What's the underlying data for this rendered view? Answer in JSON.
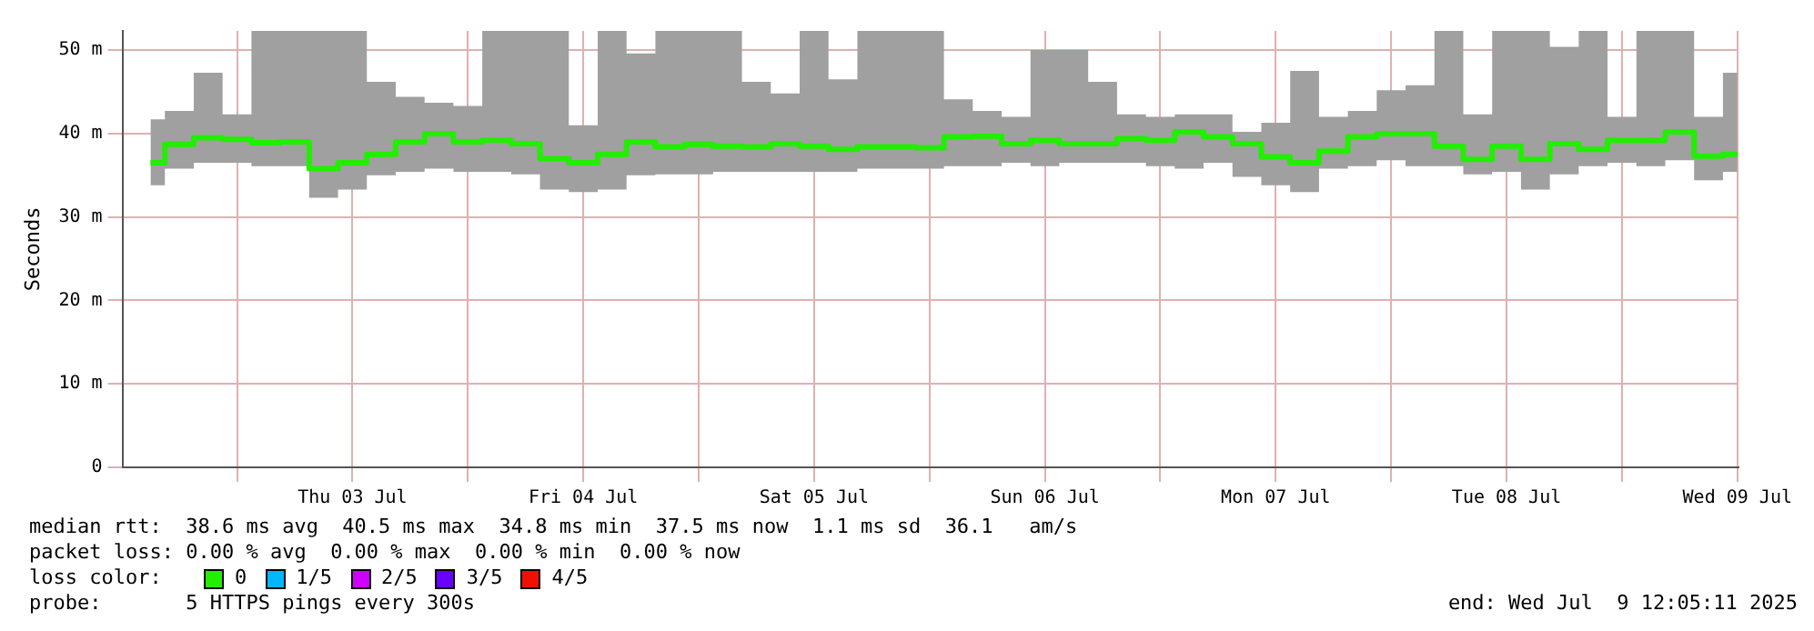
{
  "chart_data": {
    "type": "step",
    "ylabel": "Seconds",
    "legend_title": "loss color:",
    "legend": "bottom",
    "grid": true,
    "xlim": [
      "2025-07-02T12:05",
      "2025-07-09T12:05"
    ],
    "xticks": [
      {
        "value": "2025-07-03T00:00",
        "label": null
      },
      {
        "value": "2025-07-03T12:00",
        "label": "Thu 03 Jul"
      },
      {
        "value": "2025-07-04T00:00",
        "label": null
      },
      {
        "value": "2025-07-04T12:00",
        "label": "Fri 04 Jul"
      },
      {
        "value": "2025-07-05T00:00",
        "label": null
      },
      {
        "value": "2025-07-05T12:00",
        "label": "Sat 05 Jul"
      },
      {
        "value": "2025-07-06T00:00",
        "label": null
      },
      {
        "value": "2025-07-06T12:00",
        "label": "Sun 06 Jul"
      },
      {
        "value": "2025-07-07T00:00",
        "label": null
      },
      {
        "value": "2025-07-07T12:00",
        "label": "Mon 07 Jul"
      },
      {
        "value": "2025-07-08T00:00",
        "label": null
      },
      {
        "value": "2025-07-08T12:00",
        "label": "Tue 08 Jul"
      },
      {
        "value": "2025-07-09T00:00",
        "label": null
      },
      {
        "value": "2025-07-09T12:00",
        "label": "Wed 09 Jul"
      }
    ],
    "ylim": [
      0,
      52.3
    ],
    "yticks": [
      0,
      {
        "value": 10,
        "label": "10 m"
      },
      {
        "value": 20,
        "label": "20 m"
      },
      {
        "value": 30,
        "label": "30 m"
      },
      {
        "value": 40,
        "label": "40 m"
      },
      {
        "value": 50,
        "label": "50 m"
      }
    ],
    "x": [
      "2025-07-02T15:00",
      "2025-07-02T18:00",
      "2025-07-02T21:00",
      "2025-07-03T00:00",
      "2025-07-03T03:00",
      "2025-07-03T06:00",
      "2025-07-03T09:00",
      "2025-07-03T12:00",
      "2025-07-03T15:00",
      "2025-07-03T18:00",
      "2025-07-03T21:00",
      "2025-07-04T00:00",
      "2025-07-04T03:00",
      "2025-07-04T06:00",
      "2025-07-04T09:00",
      "2025-07-04T12:00",
      "2025-07-04T15:00",
      "2025-07-04T18:00",
      "2025-07-04T21:00",
      "2025-07-05T00:00",
      "2025-07-05T03:00",
      "2025-07-05T06:00",
      "2025-07-05T09:00",
      "2025-07-05T12:00",
      "2025-07-05T15:00",
      "2025-07-05T18:00",
      "2025-07-05T21:00",
      "2025-07-06T00:00",
      "2025-07-06T03:00",
      "2025-07-06T06:00",
      "2025-07-06T09:00",
      "2025-07-06T12:00",
      "2025-07-06T15:00",
      "2025-07-06T18:00",
      "2025-07-06T21:00",
      "2025-07-07T00:00",
      "2025-07-07T03:00",
      "2025-07-07T06:00",
      "2025-07-07T09:00",
      "2025-07-07T12:00",
      "2025-07-07T15:00",
      "2025-07-07T18:00",
      "2025-07-07T21:00",
      "2025-07-08T00:00",
      "2025-07-08T03:00",
      "2025-07-08T06:00",
      "2025-07-08T09:00",
      "2025-07-08T12:00",
      "2025-07-08T15:00",
      "2025-07-08T18:00",
      "2025-07-08T21:00",
      "2025-07-09T00:00",
      "2025-07-09T03:00",
      "2025-07-09T06:00",
      "2025-07-09T09:00",
      "2025-07-09T12:00"
    ],
    "series": [
      {
        "name": "0",
        "color": "#22ee00",
        "values": [
          36.5,
          38.7,
          39.5,
          39.3,
          38.9,
          39.0,
          35.8,
          36.5,
          37.5,
          39.0,
          40.0,
          39.0,
          39.2,
          38.8,
          37.0,
          36.5,
          37.5,
          39.0,
          38.4,
          38.7,
          38.5,
          38.4,
          38.8,
          38.5,
          38.1,
          38.4,
          38.4,
          38.3,
          39.6,
          39.7,
          38.8,
          39.2,
          38.8,
          38.8,
          39.4,
          39.2,
          40.2,
          39.6,
          38.8,
          37.2,
          36.5,
          37.9,
          39.6,
          40.0,
          40.0,
          38.5,
          36.9,
          38.5,
          36.9,
          38.8,
          38.1,
          39.2,
          39.2,
          40.2,
          37.3,
          37.5
        ],
        "lower": [
          33.8,
          35.8,
          36.5,
          36.5,
          36.1,
          36.1,
          32.3,
          33.3,
          35.0,
          35.4,
          35.8,
          35.4,
          35.4,
          35.1,
          33.3,
          33.0,
          33.3,
          35.0,
          35.1,
          35.1,
          35.4,
          35.4,
          35.4,
          35.4,
          35.4,
          35.8,
          35.8,
          35.8,
          36.1,
          36.1,
          36.5,
          36.1,
          36.5,
          36.5,
          36.5,
          36.1,
          35.8,
          36.5,
          34.8,
          33.8,
          33.0,
          35.8,
          36.1,
          36.8,
          36.1,
          36.1,
          35.1,
          35.4,
          33.3,
          35.1,
          36.1,
          36.5,
          36.1,
          36.8,
          34.4,
          35.4
        ],
        "upper": [
          41.7,
          42.7,
          47.3,
          42.3,
          52.3,
          52.3,
          52.3,
          52.3,
          46.2,
          44.4,
          43.7,
          43.3,
          52.3,
          52.3,
          52.3,
          41.0,
          52.3,
          49.6,
          52.3,
          52.3,
          52.3,
          46.2,
          44.8,
          52.3,
          46.5,
          52.3,
          52.3,
          52.3,
          44.1,
          42.7,
          42.0,
          50.0,
          50.0,
          46.2,
          42.3,
          42.0,
          42.3,
          42.3,
          40.2,
          41.3,
          47.5,
          42.0,
          42.7,
          45.2,
          45.8,
          52.3,
          42.3,
          52.3,
          52.3,
          50.4,
          52.3,
          42.0,
          52.3,
          52.3,
          42.0,
          47.3
        ]
      },
      {
        "name": "1/5",
        "color": "#00b8ff",
        "values": [
          null,
          null,
          null,
          null,
          null,
          null,
          null,
          null,
          null,
          null,
          null,
          null,
          null,
          null,
          null,
          null,
          null,
          null,
          null,
          null,
          null,
          null,
          null,
          null,
          null,
          null,
          null,
          null,
          null,
          null,
          null,
          null,
          null,
          null,
          null,
          null,
          null,
          null,
          null,
          null,
          null,
          null,
          null,
          null,
          null,
          null,
          null,
          null,
          null,
          null,
          null,
          null,
          null,
          null,
          null,
          null
        ]
      },
      {
        "name": "2/5",
        "color": "#d000ff",
        "values": [
          null,
          null,
          null,
          null,
          null,
          null,
          null,
          null,
          null,
          null,
          null,
          null,
          null,
          null,
          null,
          null,
          null,
          null,
          null,
          null,
          null,
          null,
          null,
          null,
          null,
          null,
          null,
          null,
          null,
          null,
          null,
          null,
          null,
          null,
          null,
          null,
          null,
          null,
          null,
          null,
          null,
          null,
          null,
          null,
          null,
          null,
          null,
          null,
          null,
          null,
          null,
          null,
          null,
          null,
          null,
          null
        ]
      },
      {
        "name": "3/5",
        "color": "#6a00ff",
        "values": [
          null,
          null,
          null,
          null,
          null,
          null,
          null,
          null,
          null,
          null,
          null,
          null,
          null,
          null,
          null,
          null,
          null,
          null,
          null,
          null,
          null,
          null,
          null,
          null,
          null,
          null,
          null,
          null,
          null,
          null,
          null,
          null,
          null,
          null,
          null,
          null,
          null,
          null,
          null,
          null,
          null,
          null,
          null,
          null,
          null,
          null,
          null,
          null,
          null,
          null,
          null,
          null,
          null,
          null,
          null,
          null
        ]
      },
      {
        "name": "4/5",
        "color": "#ee1100",
        "values": [
          null,
          null,
          null,
          null,
          null,
          null,
          null,
          null,
          null,
          null,
          null,
          null,
          null,
          null,
          null,
          null,
          null,
          null,
          null,
          null,
          null,
          null,
          null,
          null,
          null,
          null,
          null,
          null,
          null,
          null,
          null,
          null,
          null,
          null,
          null,
          null,
          null,
          null,
          null,
          null,
          null,
          null,
          null,
          null,
          null,
          null,
          null,
          null,
          null,
          null,
          null,
          null,
          null,
          null,
          null,
          null
        ]
      }
    ],
    "annotations": [
      "median rtt:  38.6 ms avg  40.5 ms max  34.8 ms min  37.5 ms now  1.1 ms sd  36.1   am/s",
      "packet loss: 0.00 % avg  0.00 % max  0.00 % min  0.00 % now",
      "probe:       5 HTTPS pings every 300s",
      "end: Wed Jul  9 12:05:11 2025"
    ]
  }
}
